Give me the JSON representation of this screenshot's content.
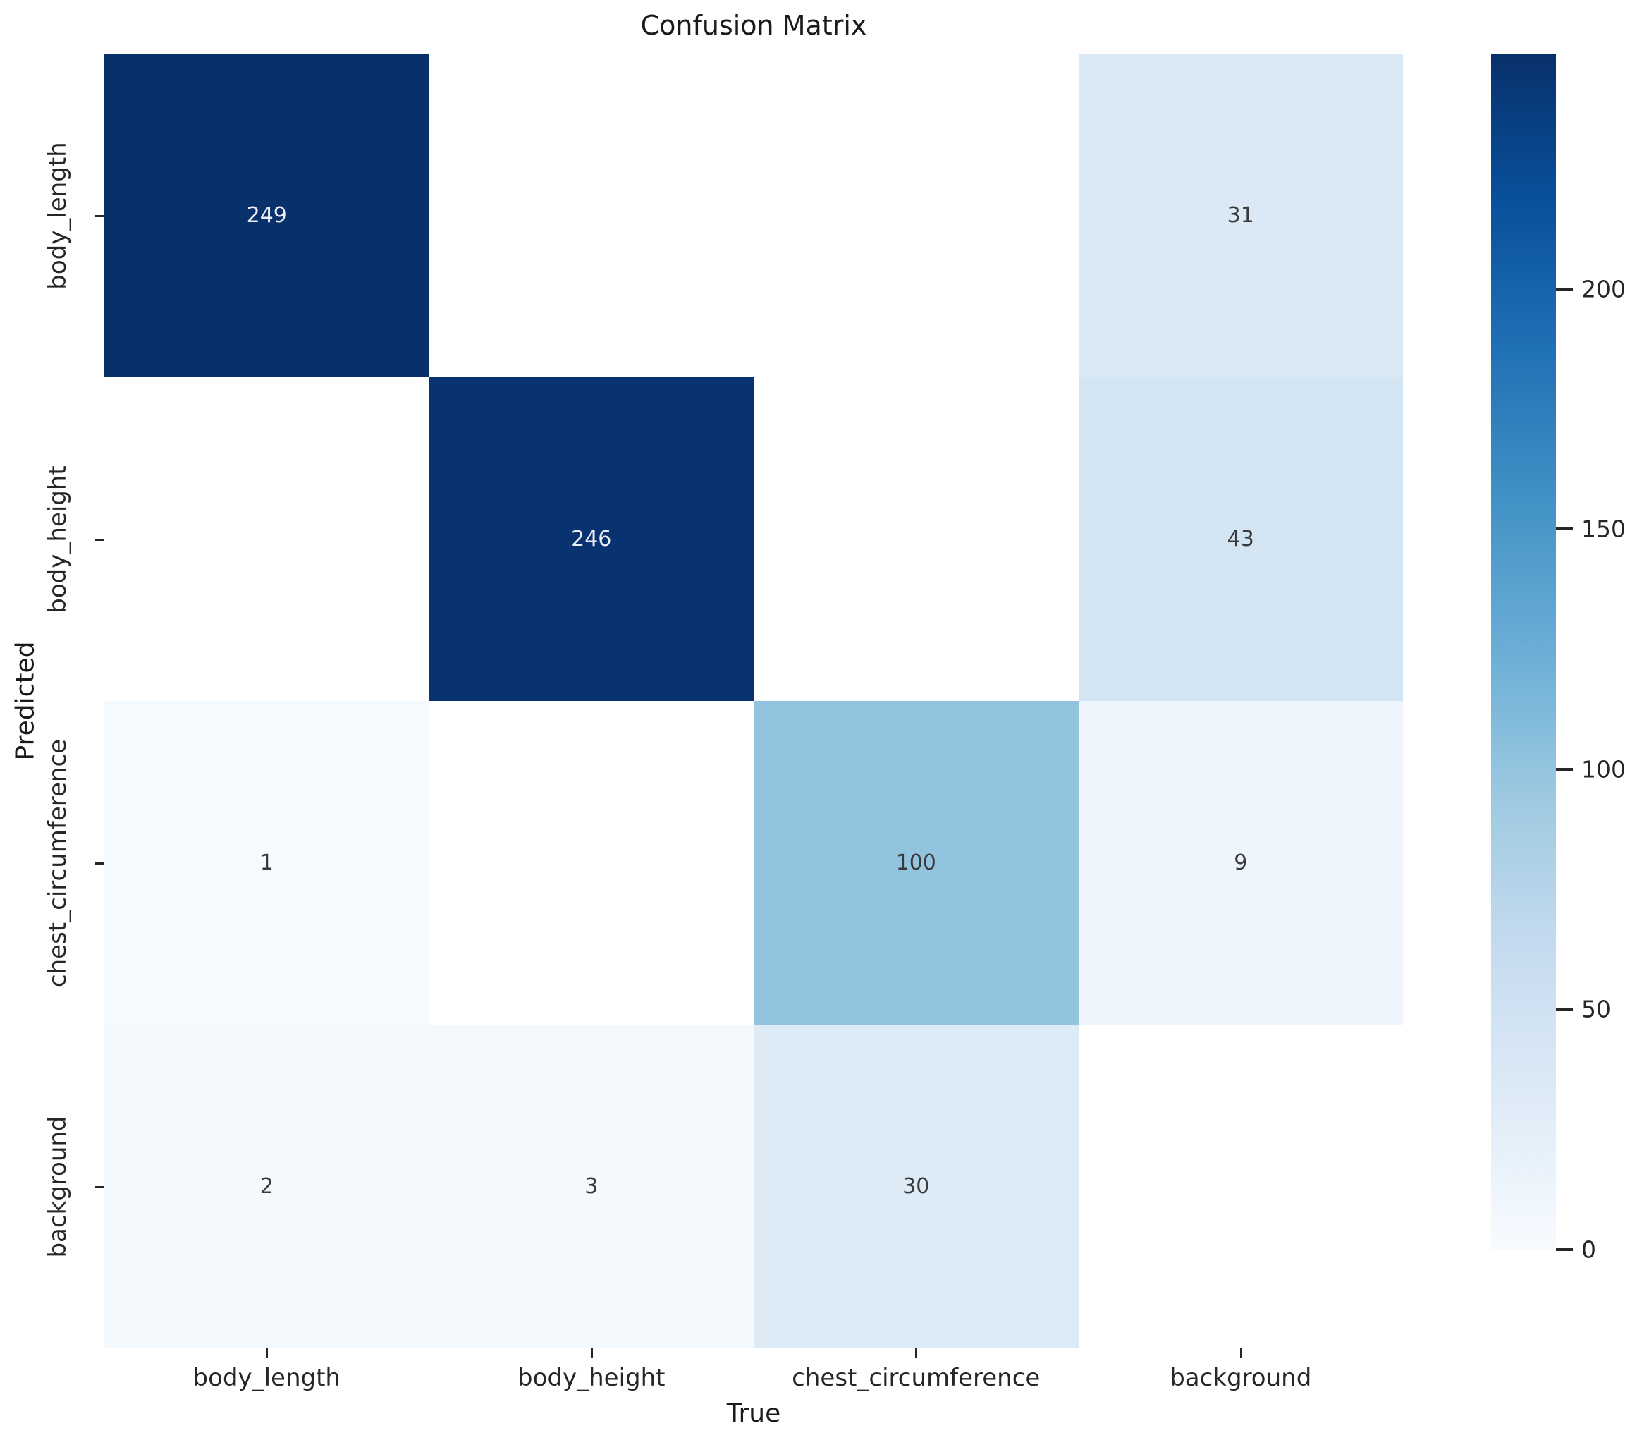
{
  "chart_data": {
    "type": "heatmap",
    "title": "Confusion Matrix",
    "xlabel": "True",
    "ylabel": "Predicted",
    "x_categories": [
      "body_length",
      "body_height",
      "chest_circumference",
      "background"
    ],
    "y_categories": [
      "body_length",
      "body_height",
      "chest_circumference",
      "background"
    ],
    "values": [
      [
        249,
        null,
        null,
        31
      ],
      [
        null,
        246,
        null,
        43
      ],
      [
        1,
        null,
        100,
        9
      ],
      [
        2,
        3,
        30,
        null
      ]
    ],
    "cell_colors": [
      [
        "#08306b",
        "#ffffff",
        "#ffffff",
        "#dbe9f6"
      ],
      [
        "#ffffff",
        "#083370",
        "#ffffff",
        "#d3e4f3"
      ],
      [
        "#f5fafe",
        "#ffffff",
        "#92c4df",
        "#eef5fc"
      ],
      [
        "#f4f9fe",
        "#f4f9fe",
        "#dcebf6",
        "#ffffff"
      ]
    ],
    "annotation": {
      "light_color": "#e9eef6",
      "dark_color": "#3a3a3a",
      "light_text_threshold": 150
    },
    "colorbar": {
      "ticks": [
        0,
        50,
        100,
        150,
        200
      ],
      "vmin": 0,
      "vmax": 249,
      "gradient_low_to_high": [
        "#f7fbff",
        "#deebf7",
        "#c6dbef",
        "#9ecae1",
        "#6baed6",
        "#4292c6",
        "#2171b5",
        "#08519c",
        "#08306b"
      ]
    },
    "legend_position": "right-colorbar",
    "grid": false
  }
}
